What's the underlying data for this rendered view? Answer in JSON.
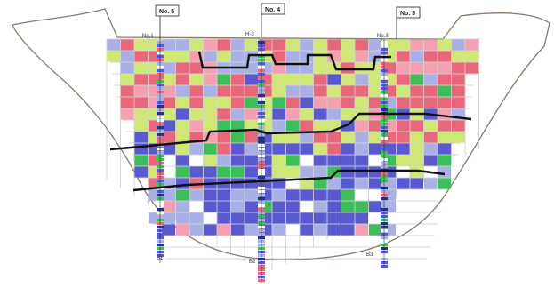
{
  "diagram": {
    "boreholes": [
      {
        "top_label": "No. 5",
        "bottom_label": "B1"
      },
      {
        "top_label": "No. 4",
        "bottom_label": "B2"
      },
      {
        "top_label": "No. 3",
        "bottom_label": "B3"
      }
    ],
    "collar_labels": [
      "No.1",
      "H-3",
      "No.3"
    ],
    "palette": {
      "red": "#e9677b",
      "pink": "#f4a0b0",
      "yellow_green": "#cfe874",
      "green": "#3cbf5a",
      "blue": "#5a5ad0",
      "light_blue": "#a9b0e6",
      "boundary": "#111111",
      "grid": "#9a9a9a",
      "valley": "#8a7a6a"
    }
  }
}
